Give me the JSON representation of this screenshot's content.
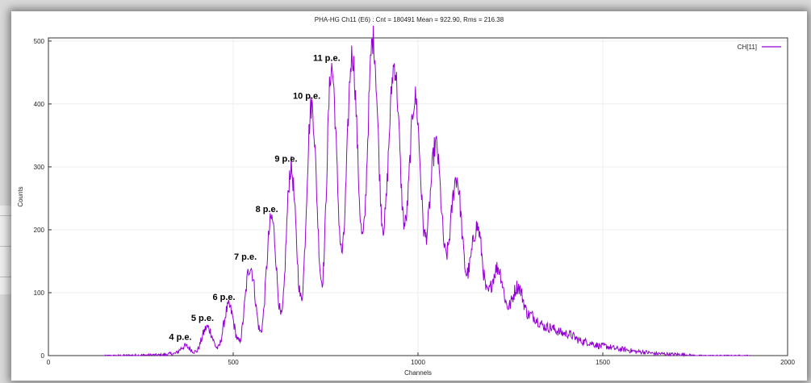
{
  "chart_data": {
    "type": "line",
    "title": "PHA-HG Ch11 (E6) : Cnt = 180491 Mean = 922.90, Rms = 216.38",
    "xlabel": "Channels",
    "ylabel": "Counts",
    "xlim": [
      0,
      2000
    ],
    "ylim": [
      0,
      505
    ],
    "xticks": [
      0,
      500,
      1000,
      1500,
      2000
    ],
    "yticks": [
      0,
      100,
      200,
      300,
      400,
      500
    ],
    "grid": true,
    "legend_position": "top-right",
    "color": "#9400D3",
    "series": [
      {
        "name": "CH[11]",
        "peaks": [
          {
            "x": 370,
            "y": 15
          },
          {
            "x": 430,
            "y": 45
          },
          {
            "x": 488,
            "y": 78
          },
          {
            "x": 546,
            "y": 142
          },
          {
            "x": 604,
            "y": 218
          },
          {
            "x": 656,
            "y": 298
          },
          {
            "x": 712,
            "y": 398
          },
          {
            "x": 766,
            "y": 458
          },
          {
            "x": 822,
            "y": 478
          },
          {
            "x": 878,
            "y": 503
          },
          {
            "x": 936,
            "y": 462
          },
          {
            "x": 992,
            "y": 410
          },
          {
            "x": 1048,
            "y": 335
          },
          {
            "x": 1104,
            "y": 283
          },
          {
            "x": 1160,
            "y": 205
          },
          {
            "x": 1216,
            "y": 140
          },
          {
            "x": 1270,
            "y": 110
          }
        ],
        "valleys": [
          {
            "x": 340,
            "y": 3
          },
          {
            "x": 398,
            "y": 6
          },
          {
            "x": 458,
            "y": 12
          },
          {
            "x": 516,
            "y": 22
          },
          {
            "x": 574,
            "y": 38
          },
          {
            "x": 630,
            "y": 62
          },
          {
            "x": 684,
            "y": 90
          },
          {
            "x": 740,
            "y": 118
          },
          {
            "x": 794,
            "y": 165
          },
          {
            "x": 850,
            "y": 188
          },
          {
            "x": 906,
            "y": 205
          },
          {
            "x": 964,
            "y": 208
          },
          {
            "x": 1020,
            "y": 188
          },
          {
            "x": 1076,
            "y": 160
          },
          {
            "x": 1132,
            "y": 130
          },
          {
            "x": 1188,
            "y": 100
          },
          {
            "x": 1244,
            "y": 78
          },
          {
            "x": 1300,
            "y": 65
          }
        ],
        "tail": [
          {
            "x": 1350,
            "y": 45
          },
          {
            "x": 1400,
            "y": 35
          },
          {
            "x": 1450,
            "y": 22
          },
          {
            "x": 1500,
            "y": 15
          },
          {
            "x": 1550,
            "y": 10
          },
          {
            "x": 1600,
            "y": 6
          },
          {
            "x": 1650,
            "y": 3
          },
          {
            "x": 1700,
            "y": 2
          },
          {
            "x": 1760,
            "y": 0
          }
        ]
      }
    ],
    "annotations": [
      {
        "label": "4 p.e.",
        "x": 370,
        "y": 15
      },
      {
        "label": "5 p.e.",
        "x": 430,
        "y": 45
      },
      {
        "label": "6 p.e.",
        "x": 488,
        "y": 78
      },
      {
        "label": "7 p.e.",
        "x": 546,
        "y": 142
      },
      {
        "label": "8 p.e.",
        "x": 604,
        "y": 218
      },
      {
        "label": "9 p.e.",
        "x": 656,
        "y": 298
      },
      {
        "label": "10 p.e.",
        "x": 712,
        "y": 398
      },
      {
        "label": "11 p.e.",
        "x": 766,
        "y": 458
      }
    ]
  }
}
